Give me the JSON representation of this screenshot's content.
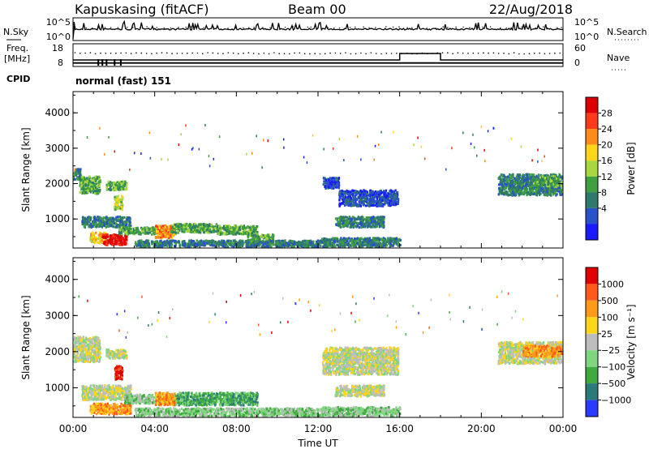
{
  "header": {
    "station": "Kapuskasing (fitACF)",
    "beam": "Beam 00",
    "date": "22/Aug/2018"
  },
  "noise_panel": {
    "left_label": "N.Sky",
    "right_label": "N.Search",
    "left_ticks": [
      "10^5",
      "10^0"
    ],
    "right_ticks": [
      "10^5",
      "10^0"
    ]
  },
  "freq_panel": {
    "left_label_line1": "Freq.",
    "left_label_line2": "[MHz]",
    "right_label": "Nave",
    "left_ticks": [
      "18",
      "8"
    ],
    "right_ticks": [
      "60",
      "0"
    ],
    "cpid_label": "CPID",
    "cpid_text": "normal (fast) 151",
    "freq_mhz": [
      {
        "t": 0.0,
        "v": 8.0
      },
      {
        "t": 24.0,
        "v": 8.0
      }
    ],
    "nave": [
      {
        "t": 0.0,
        "v": 15
      },
      {
        "t": 16.0,
        "v": 15
      },
      {
        "t": 16.0,
        "v": 35
      },
      {
        "t": 18.0,
        "v": 35
      },
      {
        "t": 18.0,
        "v": 15
      },
      {
        "t": 24.0,
        "v": 15
      }
    ]
  },
  "chart_data": [
    {
      "type": "heatmap",
      "title": "",
      "xlabel": "",
      "ylabel": "Slant Range [km]",
      "xlim": [
        0,
        24
      ],
      "ylim": [
        180,
        4600
      ],
      "yticks": [
        "1000",
        "2000",
        "3000",
        "4000"
      ],
      "colorbar_label": "Power [dB]",
      "colorbar_ticks": [
        "4",
        "8",
        "12",
        "16",
        "20",
        "24",
        "28"
      ],
      "colorbar_colors": [
        "#1a1aff",
        "#2a52c8",
        "#2f7a6a",
        "#3fa040",
        "#a8d840",
        "#ffd51a",
        "#ff8c1a",
        "#ff3a1a",
        "#dd0000"
      ],
      "echo_regions": [
        {
          "t0": 0.0,
          "t1": 0.35,
          "r0": 2100,
          "r1": 2400,
          "level": 2
        },
        {
          "t0": 0.3,
          "t1": 1.3,
          "r0": 1700,
          "r1": 2200,
          "level": 3
        },
        {
          "t0": 1.6,
          "t1": 2.6,
          "r0": 1800,
          "r1": 2050,
          "level": 3
        },
        {
          "t0": 2.0,
          "t1": 2.4,
          "r0": 1250,
          "r1": 1650,
          "level": 4
        },
        {
          "t0": 0.4,
          "t1": 2.8,
          "r0": 750,
          "r1": 1050,
          "level": 2
        },
        {
          "t0": 0.8,
          "t1": 1.6,
          "r0": 300,
          "r1": 600,
          "level": 5
        },
        {
          "t0": 1.4,
          "t1": 2.6,
          "r0": 250,
          "r1": 550,
          "level": 8
        },
        {
          "t0": 2.2,
          "t1": 5.0,
          "r0": 550,
          "r1": 750,
          "level": 3
        },
        {
          "t0": 4.0,
          "t1": 4.9,
          "r0": 450,
          "r1": 800,
          "level": 6
        },
        {
          "t0": 4.8,
          "t1": 7.0,
          "r0": 600,
          "r1": 850,
          "level": 3
        },
        {
          "t0": 7.0,
          "t1": 9.0,
          "r0": 550,
          "r1": 800,
          "level": 3
        },
        {
          "t0": 8.5,
          "t1": 9.8,
          "r0": 300,
          "r1": 550,
          "level": 3
        },
        {
          "t0": 3.0,
          "t1": 12.0,
          "r0": 200,
          "r1": 380,
          "level": 2
        },
        {
          "t0": 12.2,
          "t1": 13.0,
          "r0": 1850,
          "r1": 2150,
          "level": 1
        },
        {
          "t0": 13.0,
          "t1": 15.9,
          "r0": 1350,
          "r1": 1800,
          "level": 1
        },
        {
          "t0": 12.8,
          "t1": 15.2,
          "r0": 750,
          "r1": 1050,
          "level": 2
        },
        {
          "t0": 12.0,
          "t1": 16.0,
          "r0": 200,
          "r1": 450,
          "level": 2
        },
        {
          "t0": 20.8,
          "t1": 23.9,
          "r0": 1650,
          "r1": 2250,
          "level": 2
        },
        {
          "t0": 22.5,
          "t1": 23.9,
          "r0": 1900,
          "r1": 2200,
          "level": 3
        }
      ]
    },
    {
      "type": "heatmap",
      "title": "",
      "xlabel": "Time UT",
      "ylabel": "Slant Range [km]",
      "xlim": [
        0,
        24
      ],
      "ylim": [
        180,
        4600
      ],
      "xticks": [
        "00:00",
        "04:00",
        "08:00",
        "12:00",
        "16:00",
        "20:00",
        "00:00"
      ],
      "yticks": [
        "1000",
        "2000",
        "3000",
        "4000"
      ],
      "colorbar_label": "Velocity [m s⁻¹]",
      "colorbar_ticks": [
        "1000",
        "500",
        "100",
        "25",
        "−25",
        "−100",
        "−500",
        "−1000"
      ],
      "colorbar_colors": [
        "#2a3aff",
        "#2a7a7a",
        "#3faa3f",
        "#7fd67f",
        "#bdbdbd",
        "#ffd51a",
        "#ff9a1a",
        "#ff5a1a",
        "#e00000"
      ],
      "echo_regions": [
        {
          "t0": 0.0,
          "t1": 1.3,
          "r0": 1700,
          "r1": 2400,
          "level": 4
        },
        {
          "t0": 1.6,
          "t1": 2.6,
          "r0": 1800,
          "r1": 2050,
          "level": 4
        },
        {
          "t0": 2.0,
          "t1": 2.4,
          "r0": 1200,
          "r1": 1600,
          "level": 8
        },
        {
          "t0": 0.4,
          "t1": 2.8,
          "r0": 650,
          "r1": 1050,
          "level": 4
        },
        {
          "t0": 0.8,
          "t1": 2.8,
          "r0": 250,
          "r1": 550,
          "level": 6
        },
        {
          "t0": 2.5,
          "t1": 5.2,
          "r0": 550,
          "r1": 800,
          "level": 3
        },
        {
          "t0": 4.0,
          "t1": 5.0,
          "r0": 500,
          "r1": 850,
          "level": 6
        },
        {
          "t0": 5.0,
          "t1": 9.0,
          "r0": 500,
          "r1": 850,
          "level": 2
        },
        {
          "t0": 3.0,
          "t1": 12.0,
          "r0": 200,
          "r1": 420,
          "level": 3
        },
        {
          "t0": 12.2,
          "t1": 15.9,
          "r0": 1350,
          "r1": 2100,
          "level": 4
        },
        {
          "t0": 12.8,
          "t1": 15.2,
          "r0": 750,
          "r1": 1050,
          "level": 4
        },
        {
          "t0": 12.0,
          "t1": 16.0,
          "r0": 200,
          "r1": 450,
          "level": 3
        },
        {
          "t0": 20.8,
          "t1": 23.9,
          "r0": 1650,
          "r1": 2250,
          "level": 4
        },
        {
          "t0": 22.0,
          "t1": 23.9,
          "r0": 1850,
          "r1": 2150,
          "level": 6
        }
      ]
    }
  ]
}
